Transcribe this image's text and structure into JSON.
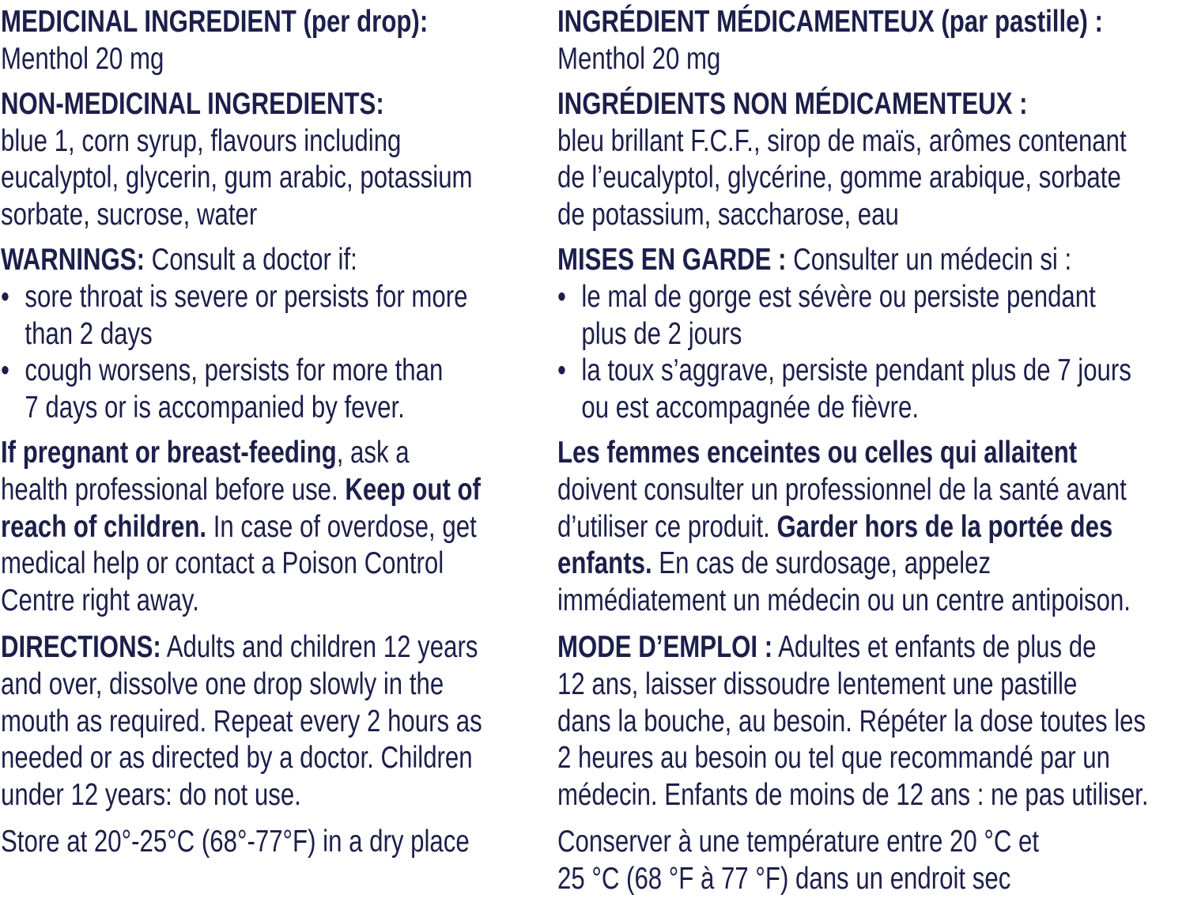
{
  "text_color": "#1c1f4a",
  "columns": [
    {
      "language": "en",
      "blocks": [
        {
          "lines": [
            {
              "segs": [
                {
                  "t": "MEDICINAL INGREDIENT (per drop):",
                  "b": true
                }
              ]
            },
            {
              "segs": [
                {
                  "t": "Menthol 20 mg",
                  "b": false
                }
              ]
            }
          ]
        },
        {
          "lines": [
            {
              "segs": [
                {
                  "t": "NON-MEDICINAL INGREDIENTS:",
                  "b": true
                }
              ]
            },
            {
              "segs": [
                {
                  "t": "blue 1, corn syrup, flavours including",
                  "b": false
                }
              ]
            },
            {
              "segs": [
                {
                  "t": "eucalyptol, glycerin, gum arabic, potassium",
                  "b": false
                }
              ]
            },
            {
              "segs": [
                {
                  "t": "sorbate, sucrose, water",
                  "b": false
                }
              ]
            }
          ]
        },
        {
          "lines": [
            {
              "segs": [
                {
                  "t": "WARNINGS:",
                  "b": true
                },
                {
                  "t": " Consult a doctor if:",
                  "b": false
                }
              ]
            },
            {
              "bullet": "•",
              "segs": [
                {
                  "t": "sore throat is severe or persists for more",
                  "b": false
                }
              ]
            },
            {
              "indent": true,
              "segs": [
                {
                  "t": "than 2 days",
                  "b": false
                }
              ]
            },
            {
              "bullet": "•",
              "segs": [
                {
                  "t": "cough worsens, persists for more than",
                  "b": false
                }
              ]
            },
            {
              "indent": true,
              "segs": [
                {
                  "t": "7 days or is accompanied by fever.",
                  "b": false
                }
              ]
            }
          ]
        },
        {
          "wide": true,
          "lines": [
            {
              "segs": [
                {
                  "t": "If pregnant or breast-feeding",
                  "b": true
                },
                {
                  "t": ", ask a",
                  "b": false
                }
              ]
            },
            {
              "segs": [
                {
                  "t": "health professional before use. ",
                  "b": false
                },
                {
                  "t": "Keep out of",
                  "b": true
                }
              ]
            },
            {
              "segs": [
                {
                  "t": "reach of children.",
                  "b": true
                },
                {
                  "t": " In case of overdose, get",
                  "b": false
                }
              ]
            },
            {
              "segs": [
                {
                  "t": "medical help or contact a Poison Control",
                  "b": false
                }
              ]
            },
            {
              "segs": [
                {
                  "t": "Centre right away.",
                  "b": false
                }
              ]
            }
          ]
        },
        {
          "wide": true,
          "lines": [
            {
              "segs": [
                {
                  "t": "DIRECTIONS:",
                  "b": true
                },
                {
                  "t": " Adults and children 12 years",
                  "b": false
                }
              ]
            },
            {
              "segs": [
                {
                  "t": "and over, dissolve one drop slowly in the",
                  "b": false
                }
              ]
            },
            {
              "segs": [
                {
                  "t": "mouth as required. Repeat every 2 hours as",
                  "b": false
                }
              ]
            },
            {
              "segs": [
                {
                  "t": "needed or as directed by a doctor. Children",
                  "b": false
                }
              ]
            },
            {
              "segs": [
                {
                  "t": "under 12 years: do not use.",
                  "b": false
                }
              ]
            }
          ]
        },
        {
          "lines": [
            {
              "segs": [
                {
                  "t": "Store at 20°-25°C (68°-77°F) in a dry place",
                  "b": false
                }
              ]
            }
          ]
        }
      ]
    },
    {
      "language": "fr",
      "blocks": [
        {
          "lines": [
            {
              "segs": [
                {
                  "t": "INGRÉDIENT MÉDICAMENTEUX (par pastille) :",
                  "b": true
                }
              ]
            },
            {
              "segs": [
                {
                  "t": "Menthol 20 mg",
                  "b": false
                }
              ]
            }
          ]
        },
        {
          "lines": [
            {
              "segs": [
                {
                  "t": "INGRÉDIENTS NON MÉDICAMENTEUX :",
                  "b": true
                }
              ]
            },
            {
              "segs": [
                {
                  "t": "bleu brillant F.C.F., sirop de maïs, arômes contenant",
                  "b": false
                }
              ]
            },
            {
              "segs": [
                {
                  "t": "de l’eucalyptol, glycérine, gomme arabique, sorbate",
                  "b": false
                }
              ]
            },
            {
              "segs": [
                {
                  "t": "de potassium, saccharose, eau",
                  "b": false
                }
              ]
            }
          ]
        },
        {
          "lines": [
            {
              "segs": [
                {
                  "t": "MISES EN GARDE :",
                  "b": true
                },
                {
                  "t": " Consulter un médecin si :",
                  "b": false
                }
              ]
            },
            {
              "bullet": "•",
              "segs": [
                {
                  "t": "le mal de gorge est sévère ou persiste pendant",
                  "b": false
                }
              ]
            },
            {
              "indent": true,
              "segs": [
                {
                  "t": "plus de 2 jours",
                  "b": false
                }
              ]
            },
            {
              "bullet": "•",
              "segs": [
                {
                  "t": "la toux s’aggrave, persiste pendant plus de 7 jours",
                  "b": false
                }
              ]
            },
            {
              "indent": true,
              "segs": [
                {
                  "t": "ou est accompagnée de fièvre.",
                  "b": false
                }
              ]
            }
          ]
        },
        {
          "wide": true,
          "lines": [
            {
              "segs": [
                {
                  "t": "Les femmes enceintes ou celles qui allaitent",
                  "b": true
                }
              ]
            },
            {
              "segs": [
                {
                  "t": "doivent consulter un professionnel de la santé avant",
                  "b": false
                }
              ]
            },
            {
              "segs": [
                {
                  "t": "d’utiliser ce produit. ",
                  "b": false
                },
                {
                  "t": "Garder hors de la portée des",
                  "b": true
                }
              ]
            },
            {
              "segs": [
                {
                  "t": "enfants.",
                  "b": true
                },
                {
                  "t": " En cas de surdosage, appelez",
                  "b": false
                }
              ]
            },
            {
              "segs": [
                {
                  "t": "immédiatement un médecin ou un centre antipoison.",
                  "b": false
                }
              ]
            }
          ]
        },
        {
          "wide": true,
          "lines": [
            {
              "segs": [
                {
                  "t": "MODE D’EMPLOI :",
                  "b": true
                },
                {
                  "t": " Adultes et enfants de plus de",
                  "b": false
                }
              ]
            },
            {
              "segs": [
                {
                  "t": "12 ans, laisser dissoudre lentement une pastille",
                  "b": false
                }
              ]
            },
            {
              "segs": [
                {
                  "t": "dans la bouche, au besoin. Répéter la dose toutes les",
                  "b": false
                }
              ]
            },
            {
              "segs": [
                {
                  "t": "2 heures au besoin ou tel que recommandé par un",
                  "b": false
                }
              ]
            },
            {
              "segs": [
                {
                  "t": "médecin. Enfants de moins de 12 ans : ne pas utiliser.",
                  "b": false
                }
              ]
            }
          ]
        },
        {
          "lines": [
            {
              "segs": [
                {
                  "t": "Conserver à une température entre 20 °C et",
                  "b": false
                }
              ]
            },
            {
              "segs": [
                {
                  "t": "25 °C (68 °F à 77 °F) dans un endroit sec",
                  "b": false
                }
              ]
            }
          ]
        }
      ]
    }
  ]
}
